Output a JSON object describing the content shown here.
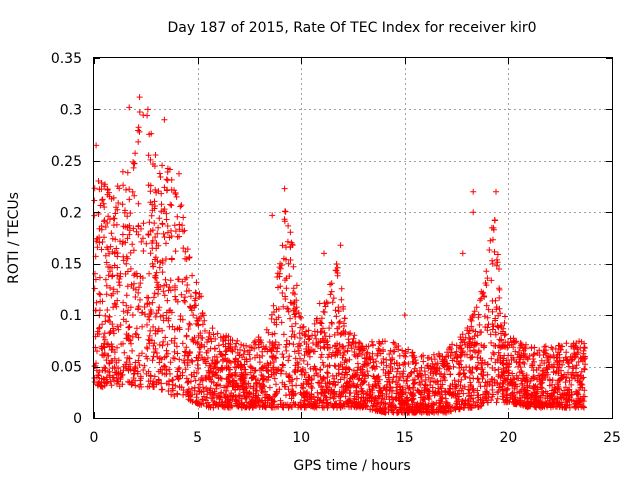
{
  "chart_data": {
    "type": "scatter",
    "title": "Day 187 of 2015, Rate Of TEC Index for receiver kir0",
    "xlabel": "GPS time / hours",
    "ylabel": "ROTI / TECUs",
    "xlim": [
      0,
      25
    ],
    "ylim": [
      0,
      0.35
    ],
    "xticks": [
      0,
      5,
      10,
      15,
      20,
      25
    ],
    "xtick_labels": [
      "0",
      "5",
      "10",
      "15",
      "20",
      "25"
    ],
    "yticks": [
      0,
      0.05,
      0.1,
      0.15,
      0.2,
      0.25,
      0.3,
      0.35
    ],
    "ytick_labels": [
      "0",
      "0.05",
      "0.1",
      "0.15",
      "0.2",
      "0.25",
      "0.3",
      "0.35"
    ],
    "grid": true,
    "marker": "+",
    "color": "#ff0000",
    "x_range": [
      0,
      23.7
    ],
    "envelope": {
      "hours": [
        0,
        0.5,
        1,
        1.5,
        2,
        2.3,
        2.7,
        3,
        3.5,
        4,
        4.3,
        4.8,
        5.5,
        6.5,
        7.5,
        8.5,
        9,
        9.3,
        9.6,
        10,
        10.5,
        11,
        11.5,
        11.8,
        12.2,
        13,
        14,
        15,
        16,
        17,
        18,
        18.5,
        19,
        19.3,
        19.6,
        20,
        21,
        22,
        23,
        23.7
      ],
      "roti_low": [
        0.03,
        0.03,
        0.03,
        0.03,
        0.03,
        0.03,
        0.03,
        0.03,
        0.025,
        0.02,
        0.02,
        0.015,
        0.01,
        0.01,
        0.01,
        0.01,
        0.01,
        0.01,
        0.01,
        0.01,
        0.01,
        0.01,
        0.01,
        0.01,
        0.01,
        0.01,
        0.005,
        0.005,
        0.005,
        0.005,
        0.01,
        0.01,
        0.015,
        0.015,
        0.015,
        0.015,
        0.01,
        0.01,
        0.01,
        0.01
      ],
      "roti_high": [
        0.25,
        0.23,
        0.22,
        0.25,
        0.27,
        0.31,
        0.3,
        0.26,
        0.24,
        0.26,
        0.2,
        0.15,
        0.09,
        0.08,
        0.07,
        0.09,
        0.16,
        0.22,
        0.17,
        0.1,
        0.08,
        0.12,
        0.14,
        0.16,
        0.09,
        0.07,
        0.08,
        0.07,
        0.06,
        0.065,
        0.09,
        0.11,
        0.15,
        0.22,
        0.13,
        0.08,
        0.07,
        0.07,
        0.075,
        0.075
      ]
    },
    "notable_points": [
      {
        "x": 0.1,
        "y": 0.265
      },
      {
        "x": 2.2,
        "y": 0.312
      },
      {
        "x": 1.7,
        "y": 0.302
      },
      {
        "x": 2.6,
        "y": 0.3
      },
      {
        "x": 3.4,
        "y": 0.29
      },
      {
        "x": 9.2,
        "y": 0.223
      },
      {
        "x": 8.6,
        "y": 0.197
      },
      {
        "x": 11.9,
        "y": 0.168
      },
      {
        "x": 11.1,
        "y": 0.16
      },
      {
        "x": 18.3,
        "y": 0.22
      },
      {
        "x": 18.3,
        "y": 0.2
      },
      {
        "x": 19.4,
        "y": 0.22
      },
      {
        "x": 17.8,
        "y": 0.16
      },
      {
        "x": 15.0,
        "y": 0.1
      }
    ]
  }
}
